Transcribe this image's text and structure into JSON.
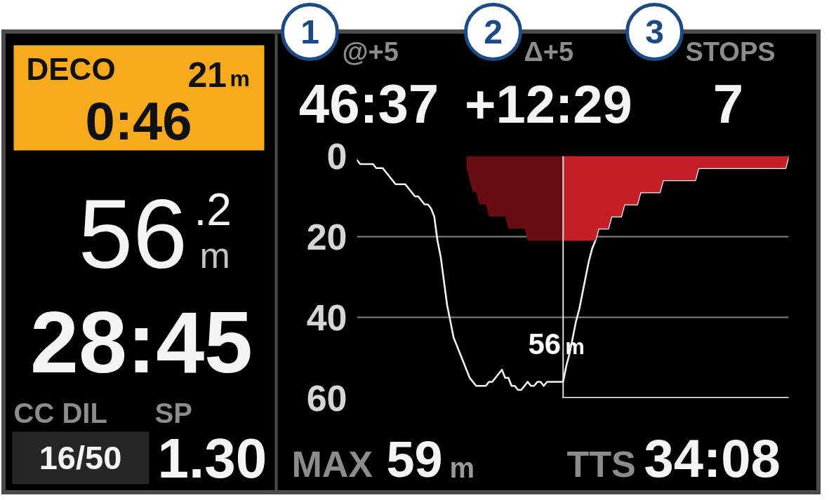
{
  "chart_data": [
    {
      "type": "other",
      "annotations": [
        "DECO",
        "21",
        "m",
        "0:46",
        "56",
        ".2",
        "m",
        "28:45",
        "CC DIL",
        "SP",
        "16/50",
        "1.30"
      ]
    },
    {
      "type": "other",
      "annotations": [
        "1",
        "2",
        "3",
        "@+5",
        "46:37",
        "Δ+5",
        "+12:29",
        "STOPS",
        "7"
      ]
    },
    {
      "type": "line",
      "categories": [
        null,
        null,
        null,
        null,
        null,
        null,
        null,
        null,
        null,
        null,
        null,
        null,
        null,
        null,
        null,
        null,
        null,
        null,
        null,
        null,
        null,
        null,
        null,
        null,
        null,
        null,
        null,
        null,
        null,
        null,
        null,
        null,
        null,
        null,
        null,
        null,
        null,
        null,
        null,
        null,
        null,
        null,
        null,
        null,
        null,
        null,
        null,
        null,
        null,
        null,
        null,
        null,
        null,
        null,
        null,
        null,
        null,
        null,
        null,
        null,
        null,
        null,
        null,
        null,
        null,
        null,
        null,
        null,
        null,
        null,
        null,
        null,
        null,
        null,
        null,
        null,
        null,
        null,
        null,
        null,
        null,
        null,
        null,
        null,
        null,
        null,
        null,
        null,
        null,
        null,
        null,
        null,
        null,
        null,
        null,
        null,
        null,
        null,
        null,
        null,
        null,
        null,
        null,
        null,
        null,
        null,
        null,
        null,
        null,
        null,
        null,
        null,
        null,
        null,
        null,
        null,
        null,
        null,
        null,
        null,
        null,
        null,
        null,
        null,
        null,
        null,
        null,
        null,
        null,
        null,
        null,
        null,
        null,
        null,
        null
      ],
      "series": [
        {
          "type": "line",
          "color": "#f2f2f2",
          "values": [
            1,
            2,
            2,
            2,
            2,
            2,
            3,
            3,
            3,
            4,
            5,
            6,
            7,
            7,
            7,
            7,
            8,
            9,
            10,
            10,
            11,
            12,
            12,
            13,
            15,
            21,
            25,
            31,
            37,
            41,
            45,
            47,
            49,
            51,
            53,
            55,
            56,
            57,
            57,
            57,
            57,
            56,
            56,
            55,
            54,
            53,
            55,
            55,
            57,
            57,
            58,
            58,
            57,
            56,
            57,
            57,
            56,
            56,
            57,
            56,
            56,
            56,
            56,
            56,
            56,
            52,
            49,
            45,
            41,
            38,
            34,
            30,
            26,
            23,
            21,
            18,
            18,
            18,
            18,
            15,
            15,
            15,
            15,
            12,
            12,
            12,
            12,
            12,
            9,
            9,
            9,
            9,
            9,
            9,
            9,
            6,
            6,
            6,
            6,
            6,
            6,
            6,
            6,
            6,
            6,
            6,
            3,
            3,
            3,
            3,
            3,
            3,
            3,
            3,
            3,
            3,
            3,
            3,
            3,
            3,
            3,
            3,
            3,
            3,
            3,
            3,
            3,
            3,
            3,
            3,
            3,
            3,
            3,
            3,
            0
          ]
        },
        {
          "type": "area",
          "color": "#680d10",
          "values": [
            null,
            null,
            null,
            null,
            null,
            null,
            null,
            null,
            null,
            null,
            null,
            null,
            null,
            null,
            null,
            null,
            null,
            null,
            null,
            null,
            null,
            null,
            null,
            null,
            null,
            null,
            null,
            null,
            null,
            null,
            null,
            null,
            null,
            null,
            3,
            6,
            9,
            9,
            12,
            12,
            12,
            15,
            15,
            15,
            15,
            15,
            15,
            18,
            18,
            18,
            18,
            18,
            18,
            21,
            21,
            21,
            21,
            21,
            21,
            21,
            21,
            21,
            21,
            21,
            21,
            null,
            null,
            null,
            null,
            null,
            null,
            null,
            null,
            null,
            null,
            null,
            null,
            null,
            null,
            null,
            null,
            null,
            null,
            null,
            null,
            null,
            null,
            null,
            null,
            null,
            null,
            null,
            null,
            null,
            null,
            null,
            null,
            null,
            null,
            null,
            null,
            null,
            null,
            null,
            null,
            null,
            null,
            null,
            null,
            null,
            null,
            null,
            null,
            null,
            null,
            null,
            null,
            null,
            null,
            null,
            null,
            null,
            null,
            null,
            null,
            null,
            null,
            null,
            null,
            null,
            null,
            null,
            null,
            null,
            null
          ]
        },
        {
          "type": "area",
          "color": "#c41f27",
          "values": [
            null,
            null,
            null,
            null,
            null,
            null,
            null,
            null,
            null,
            null,
            null,
            null,
            null,
            null,
            null,
            null,
            null,
            null,
            null,
            null,
            null,
            null,
            null,
            null,
            null,
            null,
            null,
            null,
            null,
            null,
            null,
            null,
            null,
            null,
            null,
            null,
            null,
            null,
            null,
            null,
            null,
            null,
            null,
            null,
            null,
            null,
            null,
            null,
            null,
            null,
            null,
            null,
            null,
            null,
            null,
            null,
            null,
            null,
            null,
            null,
            null,
            null,
            null,
            null,
            21,
            21,
            21,
            21,
            21,
            21,
            21,
            21,
            21,
            21,
            21,
            18,
            18,
            18,
            18,
            15,
            15,
            15,
            15,
            12,
            12,
            12,
            12,
            12,
            9,
            9,
            9,
            9,
            9,
            9,
            9,
            6,
            6,
            6,
            6,
            6,
            6,
            6,
            6,
            6,
            6,
            6,
            3,
            3,
            3,
            3,
            3,
            3,
            3,
            3,
            3,
            3,
            3,
            3,
            3,
            3,
            3,
            3,
            3,
            3,
            3,
            3,
            3,
            3,
            3,
            3,
            3,
            3,
            3,
            3,
            0
          ]
        },
        {
          "type": "line",
          "color": "#ffffff",
          "values": [
            null,
            null,
            null,
            null,
            null,
            null,
            null,
            null,
            null,
            null,
            null,
            null,
            null,
            null,
            null,
            null,
            null,
            null,
            null,
            null,
            null,
            null,
            null,
            null,
            null,
            null,
            null,
            null,
            null,
            null,
            null,
            null,
            null,
            null,
            null,
            null,
            null,
            null,
            null,
            null,
            null,
            null,
            null,
            null,
            null,
            null,
            null,
            null,
            null,
            null,
            null,
            null,
            null,
            null,
            null,
            null,
            null,
            null,
            null,
            null,
            null,
            null,
            null,
            null,
            60,
            60,
            60,
            60,
            60,
            60,
            60,
            60,
            60,
            60,
            60,
            60,
            60,
            60,
            60,
            60,
            60,
            60,
            60,
            60,
            60,
            60,
            60,
            60,
            60,
            60,
            60,
            60,
            60,
            60,
            60,
            60,
            60,
            60,
            60,
            60,
            60,
            60,
            60,
            60,
            60,
            60,
            60,
            60,
            60,
            60,
            60,
            60,
            60,
            60,
            60,
            60,
            60,
            60,
            60,
            60,
            60,
            60,
            60,
            60,
            60,
            60,
            60,
            60,
            60,
            60,
            60,
            60,
            60,
            60,
            60
          ]
        }
      ],
      "ylim": [
        60,
        0
      ],
      "yticks": [
        0,
        20,
        40,
        60
      ],
      "grid": "y",
      "annotations": [
        "56m"
      ]
    },
    {
      "type": "other",
      "annotations": [
        "MAX",
        "59",
        "m",
        "TTS",
        "34:08"
      ]
    }
  ]
}
